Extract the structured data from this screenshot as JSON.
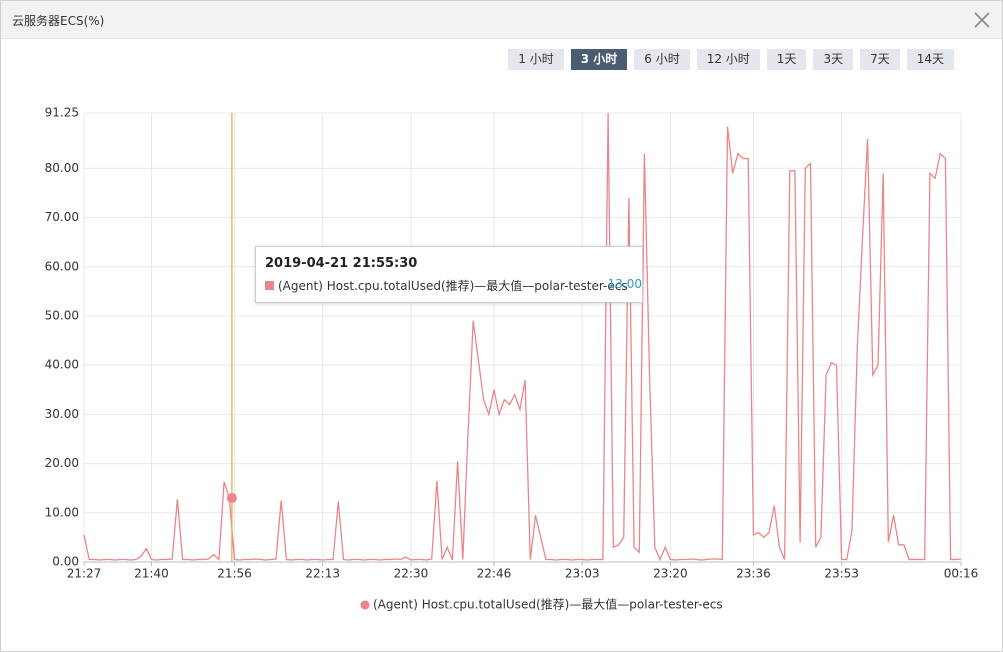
{
  "dialog": {
    "title": "云服务器ECS(%)",
    "buttons": [
      "1 小时",
      "3 小时",
      "6 小时",
      "12 小时",
      "1天",
      "3天",
      "7天",
      "14天"
    ],
    "active_button": 1
  },
  "chart_data": {
    "type": "line",
    "x": [
      "21:27",
      "21:28",
      "21:29",
      "21:30",
      "21:31",
      "21:32",
      "21:33",
      "21:34",
      "21:35",
      "21:36",
      "21:37",
      "21:38",
      "21:39",
      "21:40",
      "21:41",
      "21:42",
      "21:43",
      "21:44",
      "21:45",
      "21:46",
      "21:47",
      "21:48",
      "21:49",
      "21:50",
      "21:51",
      "21:52",
      "21:53",
      "21:54",
      "21:55",
      "21:56",
      "21:57",
      "21:58",
      "21:59",
      "22:00",
      "22:01",
      "22:02",
      "22:03",
      "22:04",
      "22:05",
      "22:06",
      "22:07",
      "22:08",
      "22:09",
      "22:10",
      "22:11",
      "22:12",
      "22:13",
      "22:14",
      "22:15",
      "22:16",
      "22:17",
      "22:18",
      "22:19",
      "22:20",
      "22:21",
      "22:22",
      "22:23",
      "22:24",
      "22:25",
      "22:26",
      "22:27",
      "22:28",
      "22:29",
      "22:30",
      "22:31",
      "22:32",
      "22:33",
      "22:34",
      "22:35",
      "22:36",
      "22:37",
      "22:38",
      "22:39",
      "22:40",
      "22:41",
      "22:42",
      "22:43",
      "22:44",
      "22:45",
      "22:46",
      "22:47",
      "22:48",
      "22:49",
      "22:50",
      "22:51",
      "22:52",
      "22:53",
      "22:54",
      "22:55",
      "22:56",
      "22:57",
      "22:58",
      "22:59",
      "23:00",
      "23:01",
      "23:02",
      "23:03",
      "23:04",
      "23:05",
      "23:06",
      "23:07",
      "23:08",
      "23:09",
      "23:10",
      "23:11",
      "23:12",
      "23:13",
      "23:14",
      "23:15",
      "23:16",
      "23:17",
      "23:18",
      "23:19",
      "23:20",
      "23:21",
      "23:22",
      "23:23",
      "23:24",
      "23:25",
      "23:26",
      "23:27",
      "23:28",
      "23:29",
      "23:30",
      "23:31",
      "23:32",
      "23:33",
      "23:34",
      "23:35",
      "23:36",
      "23:37",
      "23:38",
      "23:39",
      "23:40",
      "23:41",
      "23:42",
      "23:43",
      "23:44",
      "23:45",
      "23:46",
      "23:47",
      "23:48",
      "23:49",
      "23:50",
      "23:51",
      "23:52",
      "23:53",
      "23:54",
      "23:55",
      "23:56",
      "23:57",
      "23:58",
      "23:59",
      "00:00",
      "00:01",
      "00:02",
      "00:03",
      "00:04",
      "00:05",
      "00:06",
      "00:07",
      "00:08",
      "00:09",
      "00:10",
      "00:11",
      "00:12",
      "00:13",
      "00:14",
      "00:15",
      "00:16"
    ],
    "series": [
      {
        "name": "(Agent) Host.cpu.totalUsed(推荐)—最大值—polar-tester-ecs",
        "color": "#ec8585",
        "values": [
          5.5,
          0.5,
          0.5,
          0.4,
          0.5,
          0.5,
          0.4,
          0.5,
          0.5,
          0.4,
          0.5,
          1.2,
          2.7,
          0.5,
          0.4,
          0.5,
          0.5,
          0.6,
          12.8,
          0.5,
          0.5,
          0.4,
          0.5,
          0.5,
          0.6,
          1.5,
          0.5,
          16.3,
          13,
          0.5,
          0.4,
          0.5,
          0.5,
          0.6,
          0.5,
          0.4,
          0.5,
          0.6,
          12.5,
          0.5,
          0.4,
          0.5,
          0.5,
          0.4,
          0.5,
          0.5,
          0.4,
          0.5,
          0.5,
          12.3,
          0.5,
          0.4,
          0.5,
          0.5,
          0.4,
          0.5,
          0.5,
          0.4,
          0.5,
          0.5,
          0.6,
          0.5,
          1,
          0.4,
          0.5,
          0.5,
          0.4,
          0.6,
          16.5,
          0.5,
          3,
          0.4,
          20.5,
          0.5,
          26,
          49,
          41,
          33,
          30,
          35,
          30,
          33,
          32,
          34,
          31,
          37,
          0.5,
          9.5,
          5,
          0.5,
          0.5,
          0.4,
          0.5,
          0.5,
          0.4,
          0.5,
          0.5,
          0.4,
          0.5,
          0.5,
          0.5,
          91.25,
          3,
          3.5,
          5,
          74,
          3,
          2,
          83,
          37.5,
          3,
          0.5,
          3,
          0.5,
          0.4,
          0.5,
          0.5,
          0.6,
          0.5,
          0.4,
          0.5,
          0.6,
          0.6,
          0.5,
          88.5,
          79,
          83,
          82,
          82,
          5.5,
          6,
          5,
          6,
          11.5,
          3,
          0.5,
          79.5,
          79.5,
          4,
          80,
          81,
          3,
          5,
          38,
          40.5,
          40,
          0.5,
          0.5,
          6.5,
          43,
          65.5,
          86,
          38,
          40,
          79,
          4,
          9.5,
          3.5,
          3.5,
          0.5,
          0.5,
          0.5,
          0.5,
          79,
          78,
          83,
          82,
          0.5,
          0.5,
          0.6
        ]
      }
    ],
    "xlim": [
      "21:27",
      "00:16"
    ],
    "xticks": [
      "21:27",
      "21:40",
      "21:56",
      "22:13",
      "22:30",
      "22:46",
      "23:03",
      "23:20",
      "23:36",
      "23:53",
      "00:16"
    ],
    "ylim": [
      0,
      91.25
    ],
    "yticks": [
      {
        "value": 0,
        "label": "0.00"
      },
      {
        "value": 10,
        "label": "10.00"
      },
      {
        "value": 20,
        "label": "20.00"
      },
      {
        "value": 30,
        "label": "30.00"
      },
      {
        "value": 40,
        "label": "40.00"
      },
      {
        "value": 50,
        "label": "50.00"
      },
      {
        "value": 60,
        "label": "60.00"
      },
      {
        "value": 70,
        "label": "70.00"
      },
      {
        "value": 80,
        "label": "80.00"
      },
      91.25
    ],
    "grid": true,
    "tooltip": {
      "time": "2019-04-21 21:55:30",
      "crosshair_color": "#f0a050",
      "series": "(Agent) Host.cpu.totalUsed(推荐)—最大值—polar-tester-ecs",
      "value": 13,
      "value_label": "13.00"
    }
  }
}
